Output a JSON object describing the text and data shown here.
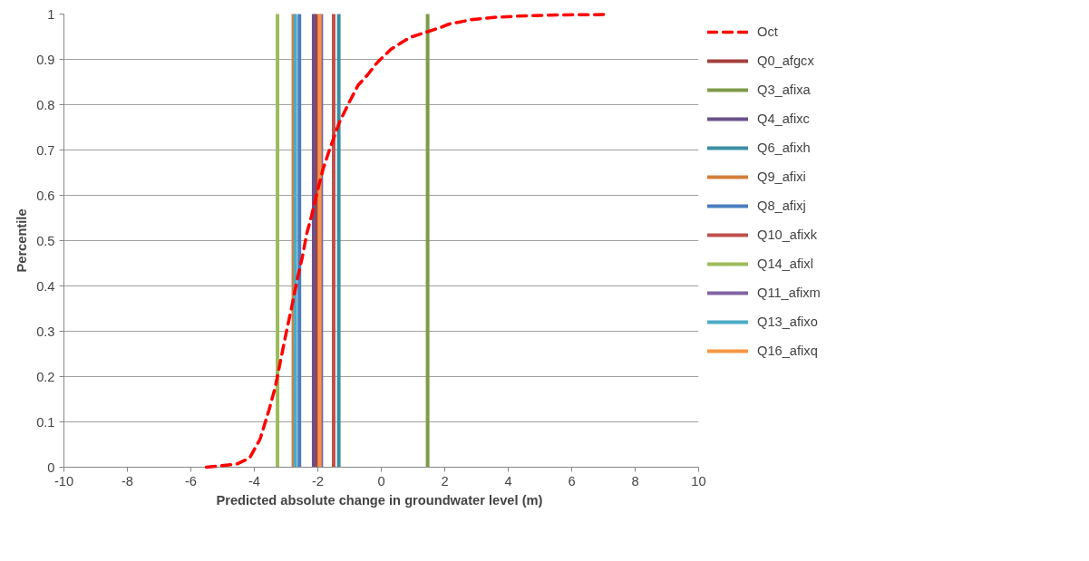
{
  "chart_data": {
    "type": "line",
    "xlabel": "Predicted absolute change  in groundwater level (m)",
    "ylabel": "Percentile",
    "xlim": [
      -10,
      10
    ],
    "xticks": [
      -10,
      -8,
      -6,
      -4,
      -2,
      0,
      2,
      4,
      6,
      8,
      10
    ],
    "ylim": [
      0,
      1
    ],
    "yticks": [
      0,
      0.1,
      0.2,
      0.3,
      0.4,
      0.5,
      0.6,
      0.7,
      0.8,
      0.9,
      1
    ],
    "grid": "y",
    "legend": "right",
    "series": [
      {
        "name": "Oct",
        "color": "#ff0000",
        "line_style": "dashed",
        "x": [
          -5.51,
          -4.55,
          -4.15,
          -3.82,
          -3.53,
          -3.34,
          -3.16,
          -3.01,
          -2.83,
          -2.64,
          -2.49,
          -2.35,
          -2.2,
          -2.02,
          -1.83,
          -1.61,
          -1.32,
          -1.02,
          -0.73,
          -0.43,
          -0.14,
          0.3,
          0.89,
          1.85,
          2.14,
          2.88,
          3.61,
          4.5,
          5.52,
          7.15
        ],
        "values": [
          0.0,
          0.007,
          0.02,
          0.062,
          0.128,
          0.177,
          0.24,
          0.292,
          0.351,
          0.417,
          0.463,
          0.515,
          0.554,
          0.607,
          0.659,
          0.705,
          0.761,
          0.804,
          0.843,
          0.866,
          0.892,
          0.922,
          0.948,
          0.97,
          0.978,
          0.988,
          0.993,
          0.996,
          0.998,
          0.999
        ]
      },
      {
        "name": "Q0_afgcx",
        "color": "#a5403c",
        "x": [
          -2.05,
          -2.05
        ],
        "values": [
          0,
          1
        ]
      },
      {
        "name": "Q3_afixa",
        "color": "#7f9a48",
        "x": [
          1.46,
          1.46
        ],
        "values": [
          0,
          1
        ]
      },
      {
        "name": "Q4_afixc",
        "color": "#6a5189",
        "x": [
          -2.13,
          -2.13
        ],
        "values": [
          0,
          1
        ]
      },
      {
        "name": "Q6_afixh",
        "color": "#3a8ea3",
        "x": [
          -1.34,
          -1.34
        ],
        "values": [
          0,
          1
        ]
      },
      {
        "name": "Q9_afixi",
        "color": "#d47f3a",
        "x": [
          -2.77,
          -2.77
        ],
        "values": [
          0,
          1
        ]
      },
      {
        "name": "Q8_afixj",
        "color": "#4a7ebf",
        "x": [
          -2.58,
          -2.58
        ],
        "values": [
          0,
          1
        ]
      },
      {
        "name": "Q10_afixk",
        "color": "#c0504d",
        "x": [
          -1.5,
          -1.5
        ],
        "values": [
          0,
          1
        ]
      },
      {
        "name": "Q14_afixl",
        "color": "#9bbb59",
        "x": [
          -3.27,
          -3.27
        ],
        "values": [
          0,
          1
        ]
      },
      {
        "name": "Q11_afixm",
        "color": "#8064a2",
        "x": [
          -1.89,
          -1.89
        ],
        "values": [
          0,
          1
        ]
      },
      {
        "name": "Q13_afixo",
        "color": "#4bacc6",
        "x": [
          -2.71,
          -2.71
        ],
        "values": [
          0,
          1
        ]
      },
      {
        "name": "Q16_afixq",
        "color": "#f79646",
        "x": [
          -1.94,
          -1.94
        ],
        "values": [
          0,
          1
        ]
      }
    ]
  }
}
